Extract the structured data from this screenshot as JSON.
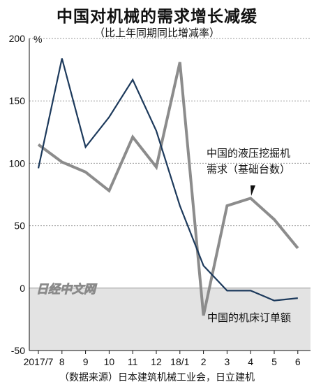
{
  "title": "中国对机械的需求增长减缓",
  "subtitle": "（比上年同期同比增减率）",
  "source": "（数据来源）日本建筑机械工业会，日立建机",
  "watermark": "日经中文网",
  "chart_data": {
    "type": "line",
    "unit": "%",
    "categories": [
      "2017/7",
      "8",
      "9",
      "10",
      "11",
      "12",
      "18/1",
      "2",
      "3",
      "4",
      "5",
      "6"
    ],
    "ylim": [
      -50,
      200
    ],
    "yticks": [
      200,
      150,
      100,
      50,
      0,
      -50
    ],
    "grid": "dashed horizontal",
    "series": [
      {
        "name": "中国的液压挖掘机需求（基础台数）",
        "color": "#8c8c8c",
        "values": [
          115,
          101,
          93,
          78,
          121,
          97,
          181,
          -22,
          66,
          72,
          55,
          32
        ]
      },
      {
        "name": "中国的机床订单额",
        "color": "#1d3a5c",
        "values": [
          96,
          184,
          113,
          137,
          167,
          126,
          66,
          18,
          -2,
          -2,
          -10,
          -8
        ]
      }
    ],
    "annotations": {
      "excavator_line1": "中国的液压挖掘机",
      "excavator_line2": "需求（基础台数）",
      "machine_tool": "中国的机床订单额"
    }
  }
}
